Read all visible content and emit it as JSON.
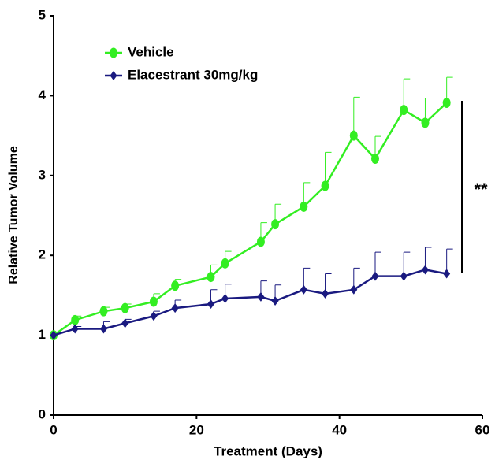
{
  "chart_data": {
    "type": "line",
    "x_label": "Treatment (Days)",
    "y_label": "Relative Tumor Volume",
    "annotation": "**",
    "xlim": [
      0,
      60
    ],
    "xticks": [
      0,
      20,
      40,
      60
    ],
    "ylim": [
      0,
      5
    ],
    "yticks": [
      0,
      1,
      2,
      3,
      4,
      5
    ],
    "x": [
      0,
      3,
      7,
      10,
      14,
      17,
      22,
      24,
      29,
      31,
      35,
      38,
      42,
      45,
      49,
      52,
      55
    ],
    "legend": "upper left",
    "series": [
      {
        "name": "Vehicle",
        "color": "#33ee22",
        "marker": "circle",
        "values": [
          1.0,
          1.19,
          1.3,
          1.34,
          1.42,
          1.62,
          1.73,
          1.9,
          2.17,
          2.39,
          2.61,
          2.87,
          3.5,
          3.21,
          3.82,
          3.66,
          3.91
        ],
        "errors": [
          0,
          0.05,
          0.05,
          0.05,
          0.1,
          0.08,
          0.15,
          0.15,
          0.24,
          0.25,
          0.3,
          0.42,
          0.48,
          0.28,
          0.39,
          0.31,
          0.32
        ]
      },
      {
        "name": "Elacestrant 30mg/kg",
        "color": "#1a1a80",
        "marker": "diamond",
        "values": [
          1.0,
          1.08,
          1.08,
          1.15,
          1.24,
          1.34,
          1.39,
          1.46,
          1.48,
          1.43,
          1.57,
          1.52,
          1.57,
          1.74,
          1.74,
          1.82,
          1.77
        ],
        "errors": [
          0,
          0.03,
          0.09,
          0.05,
          0.06,
          0.1,
          0.18,
          0.18,
          0.2,
          0.2,
          0.27,
          0.25,
          0.27,
          0.3,
          0.3,
          0.28,
          0.31
        ]
      }
    ]
  }
}
